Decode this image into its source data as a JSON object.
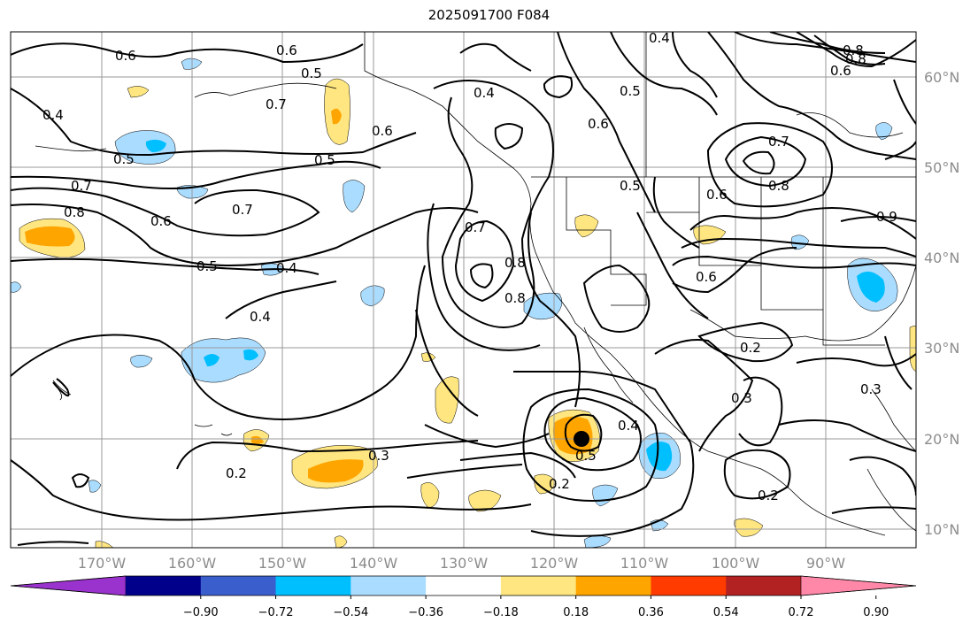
{
  "title": "2025091700 F084",
  "map": {
    "longitude_labels": [
      "170°W",
      "160°W",
      "150°W",
      "140°W",
      "130°W",
      "120°W",
      "110°W",
      "100°W",
      "90°W"
    ],
    "latitude_labels": [
      "60°N",
      "50°N",
      "40°N",
      "30°N",
      "20°N",
      "10°N"
    ],
    "contour_labels": [
      "0.6",
      "0.6",
      "0.5",
      "0.4",
      "0.7",
      "0.6",
      "0.5",
      "0.5",
      "0.7",
      "0.7",
      "0.6",
      "0.5",
      "0.4",
      "0.4",
      "0.8",
      "0.4",
      "0.6",
      "0.5",
      "0.7",
      "0.8",
      "0.8",
      "0.8",
      "0.6",
      "0.5",
      "0.7",
      "0.8",
      "0.9",
      "0.6",
      "0.2",
      "0.3",
      "0.3",
      "0.4",
      "0.5",
      "0.2",
      "0.3",
      "0.2",
      "0.2",
      "0.8",
      "0.6",
      "0.4"
    ],
    "storm_marker": "filled black circle at approximately 20°N, 116°W"
  },
  "colorbar": {
    "tick_labels": [
      "−0.90",
      "−0.72",
      "−0.54",
      "−0.36",
      "−0.18",
      "0.18",
      "0.36",
      "0.54",
      "0.72",
      "0.90"
    ],
    "colors": [
      "#9a32cd",
      "#00008b",
      "#3a5fcd",
      "#00bfff",
      "#aadcff",
      "#ffffff",
      "#ffe680",
      "#ffa500",
      "#ff3b00",
      "#b22222",
      "#ff88a8"
    ]
  },
  "shading_colors": {
    "light_blue": "#aadcff",
    "blue": "#00bfff",
    "light_yellow": "#ffe680",
    "orange": "#ffa500"
  }
}
